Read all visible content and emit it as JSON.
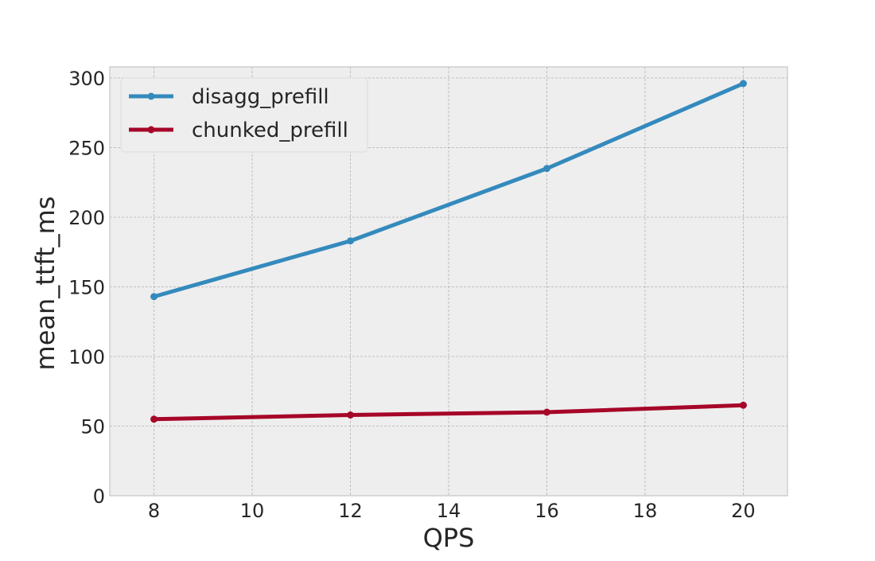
{
  "chart_data": {
    "type": "line",
    "title": "",
    "xlabel": "QPS",
    "ylabel": "mean_ttft_ms",
    "xlim": [
      7.1,
      20.9
    ],
    "ylim": [
      0,
      308
    ],
    "xticks": [
      8,
      10,
      12,
      14,
      16,
      18,
      20
    ],
    "yticks": [
      0,
      50,
      100,
      150,
      200,
      250,
      300
    ],
    "grid": true,
    "legend_position": "top-left",
    "series": [
      {
        "name": "disagg_prefill",
        "color": "#348abd",
        "x": [
          8,
          12,
          16,
          20
        ],
        "y": [
          143,
          183,
          235,
          296
        ]
      },
      {
        "name": "chunked_prefill",
        "color": "#a60628",
        "x": [
          8,
          12,
          16,
          20
        ],
        "y": [
          55,
          58,
          60,
          65
        ]
      }
    ]
  },
  "colors": {
    "plot_background": "#eeeeee",
    "grid": "#b2b2b2",
    "axis_frame": "#bcbcbc"
  }
}
